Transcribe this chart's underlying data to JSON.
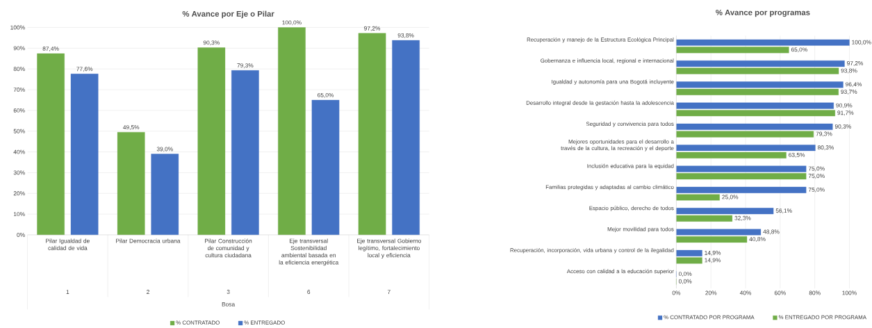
{
  "chart_data": [
    {
      "type": "bar",
      "title": "% Avance por Eje o Pilar",
      "xlabel": "Bosa",
      "categories": [
        "Pilar Igualdad de calidad de vida",
        "Pilar Democracia urbana",
        "Pilar Construcción de comunidad y cultura ciudadana",
        "Eje transversal Sostenibilidad ambiental basada en la eficiencia energética",
        "Eje transversal Gobierno legítimo, fortalecimiento local y eficiencia"
      ],
      "annotations": [
        "1",
        "2",
        "3",
        "6",
        "7"
      ],
      "series": [
        {
          "name": "% CONTRATADO",
          "color": "#70ad47",
          "values": [
            87.4,
            49.5,
            90.3,
            100.0,
            97.2
          ],
          "value_labels": [
            "87,4%",
            "49,5%",
            "90,3%",
            "100,0%",
            "97,2%"
          ]
        },
        {
          "name": "% ENTREGADO",
          "color": "#4472c4",
          "values": [
            77.6,
            39.0,
            79.3,
            65.0,
            93.8
          ],
          "value_labels": [
            "77,6%",
            "39,0%",
            "79,3%",
            "65,0%",
            "93,8%"
          ]
        }
      ],
      "ylim": [
        0,
        100
      ],
      "yticks": [
        {
          "value": 0,
          "label": "0%"
        },
        {
          "value": 10,
          "label": "10%"
        },
        {
          "value": 20,
          "label": "20%"
        },
        {
          "value": 30,
          "label": "30%"
        },
        {
          "value": 40,
          "label": "40%"
        },
        {
          "value": 50,
          "label": "50%"
        },
        {
          "value": 60,
          "label": "60%"
        },
        {
          "value": 70,
          "label": "70%"
        },
        {
          "value": 80,
          "label": "80%"
        },
        {
          "value": 90,
          "label": "90%"
        },
        {
          "value": 100,
          "label": "100%"
        }
      ],
      "grid": "y",
      "legend": "bottom"
    },
    {
      "type": "bar",
      "orientation": "horizontal",
      "title": "% Avance por programas",
      "categories": [
        "Recuperación y manejo de la Estructura Ecológica Principal",
        "Gobernanza e influencia local, regional e internacional",
        "Igualdad y autonomía para una Bogotá incluyente",
        "Desarrollo integral desde la gestación hasta la adolescencia",
        "Seguridad y convivencia para todos",
        "Mejores oportunidades para el desarrollo a través de la cultura, la recreación y el deporte",
        "Inclusión educativa para la equidad",
        "Familias protegidas y adaptadas al cambio climático",
        "Espacio público, derecho de todos",
        "Mejor movilidad para todos",
        "Recuperación, incorporación, vida urbana y control de la ilegalidad",
        "Acceso con calidad a la educación superior"
      ],
      "series": [
        {
          "name": "% CONTRATADO POR PROGRAMA",
          "color": "#4472c4",
          "values": [
            100.0,
            97.2,
            96.4,
            90.9,
            90.3,
            80.3,
            75.0,
            75.0,
            56.1,
            48.8,
            14.9,
            0.0
          ],
          "value_labels": [
            "100,0%",
            "97,2%",
            "96,4%",
            "90,9%",
            "90,3%",
            "80,3%",
            "75,0%",
            "75,0%",
            "56,1%",
            "48,8%",
            "14,9%",
            "0,0%"
          ]
        },
        {
          "name": "% ENTREGADO POR PROGRAMA",
          "color": "#70ad47",
          "values": [
            65.0,
            93.8,
            93.7,
            91.7,
            79.3,
            63.5,
            75.0,
            25.0,
            32.3,
            40.8,
            14.9,
            0.0
          ],
          "value_labels": [
            "65,0%",
            "93,8%",
            "93,7%",
            "91,7%",
            "79,3%",
            "63,5%",
            "75,0%",
            "25,0%",
            "32,3%",
            "40,8%",
            "14,9%",
            "0,0%"
          ]
        }
      ],
      "xlim": [
        0,
        100
      ],
      "xticks": [
        {
          "value": 0,
          "label": "0%"
        },
        {
          "value": 20,
          "label": "20%"
        },
        {
          "value": 40,
          "label": "40%"
        },
        {
          "value": 60,
          "label": "60%"
        },
        {
          "value": 80,
          "label": "80%"
        },
        {
          "value": 100,
          "label": "100%"
        }
      ],
      "grid": "x",
      "legend": "bottom"
    }
  ]
}
